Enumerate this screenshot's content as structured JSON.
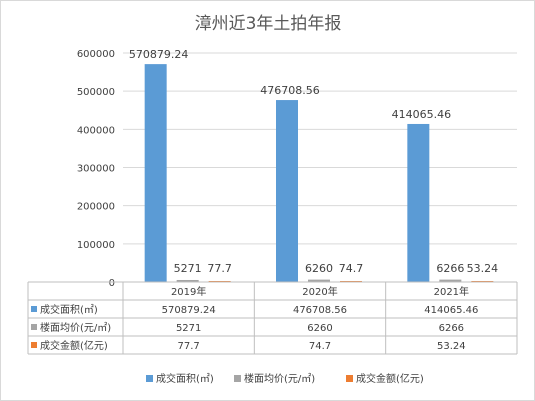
{
  "chart_data": {
    "type": "bar",
    "title": "漳州近3年土拍年报",
    "categories": [
      "2019年",
      "2020年",
      "2021年"
    ],
    "ylim": [
      0,
      600000
    ],
    "yticks": [
      "0",
      "100000",
      "200000",
      "300000",
      "400000",
      "500000",
      "600000"
    ],
    "grid": true,
    "legend_position": "bottom",
    "series": [
      {
        "name": "成交面积(㎡)",
        "values": [
          570879.24,
          476708.56,
          414065.46
        ],
        "labels": [
          "570879.24",
          "476708.56",
          "414065.46"
        ],
        "color": "#5b9bd5"
      },
      {
        "name": "楼面均价(元/㎡)",
        "values": [
          5271,
          6260,
          6266
        ],
        "labels": [
          "5271",
          "6260",
          "6266"
        ],
        "color": "#a5a5a5"
      },
      {
        "name": "成交金额(亿元)",
        "values": [
          77.7,
          74.7,
          53.24
        ],
        "labels": [
          "77.7",
          "74.7",
          "53.24"
        ],
        "color": "#ed7d31"
      }
    ]
  }
}
